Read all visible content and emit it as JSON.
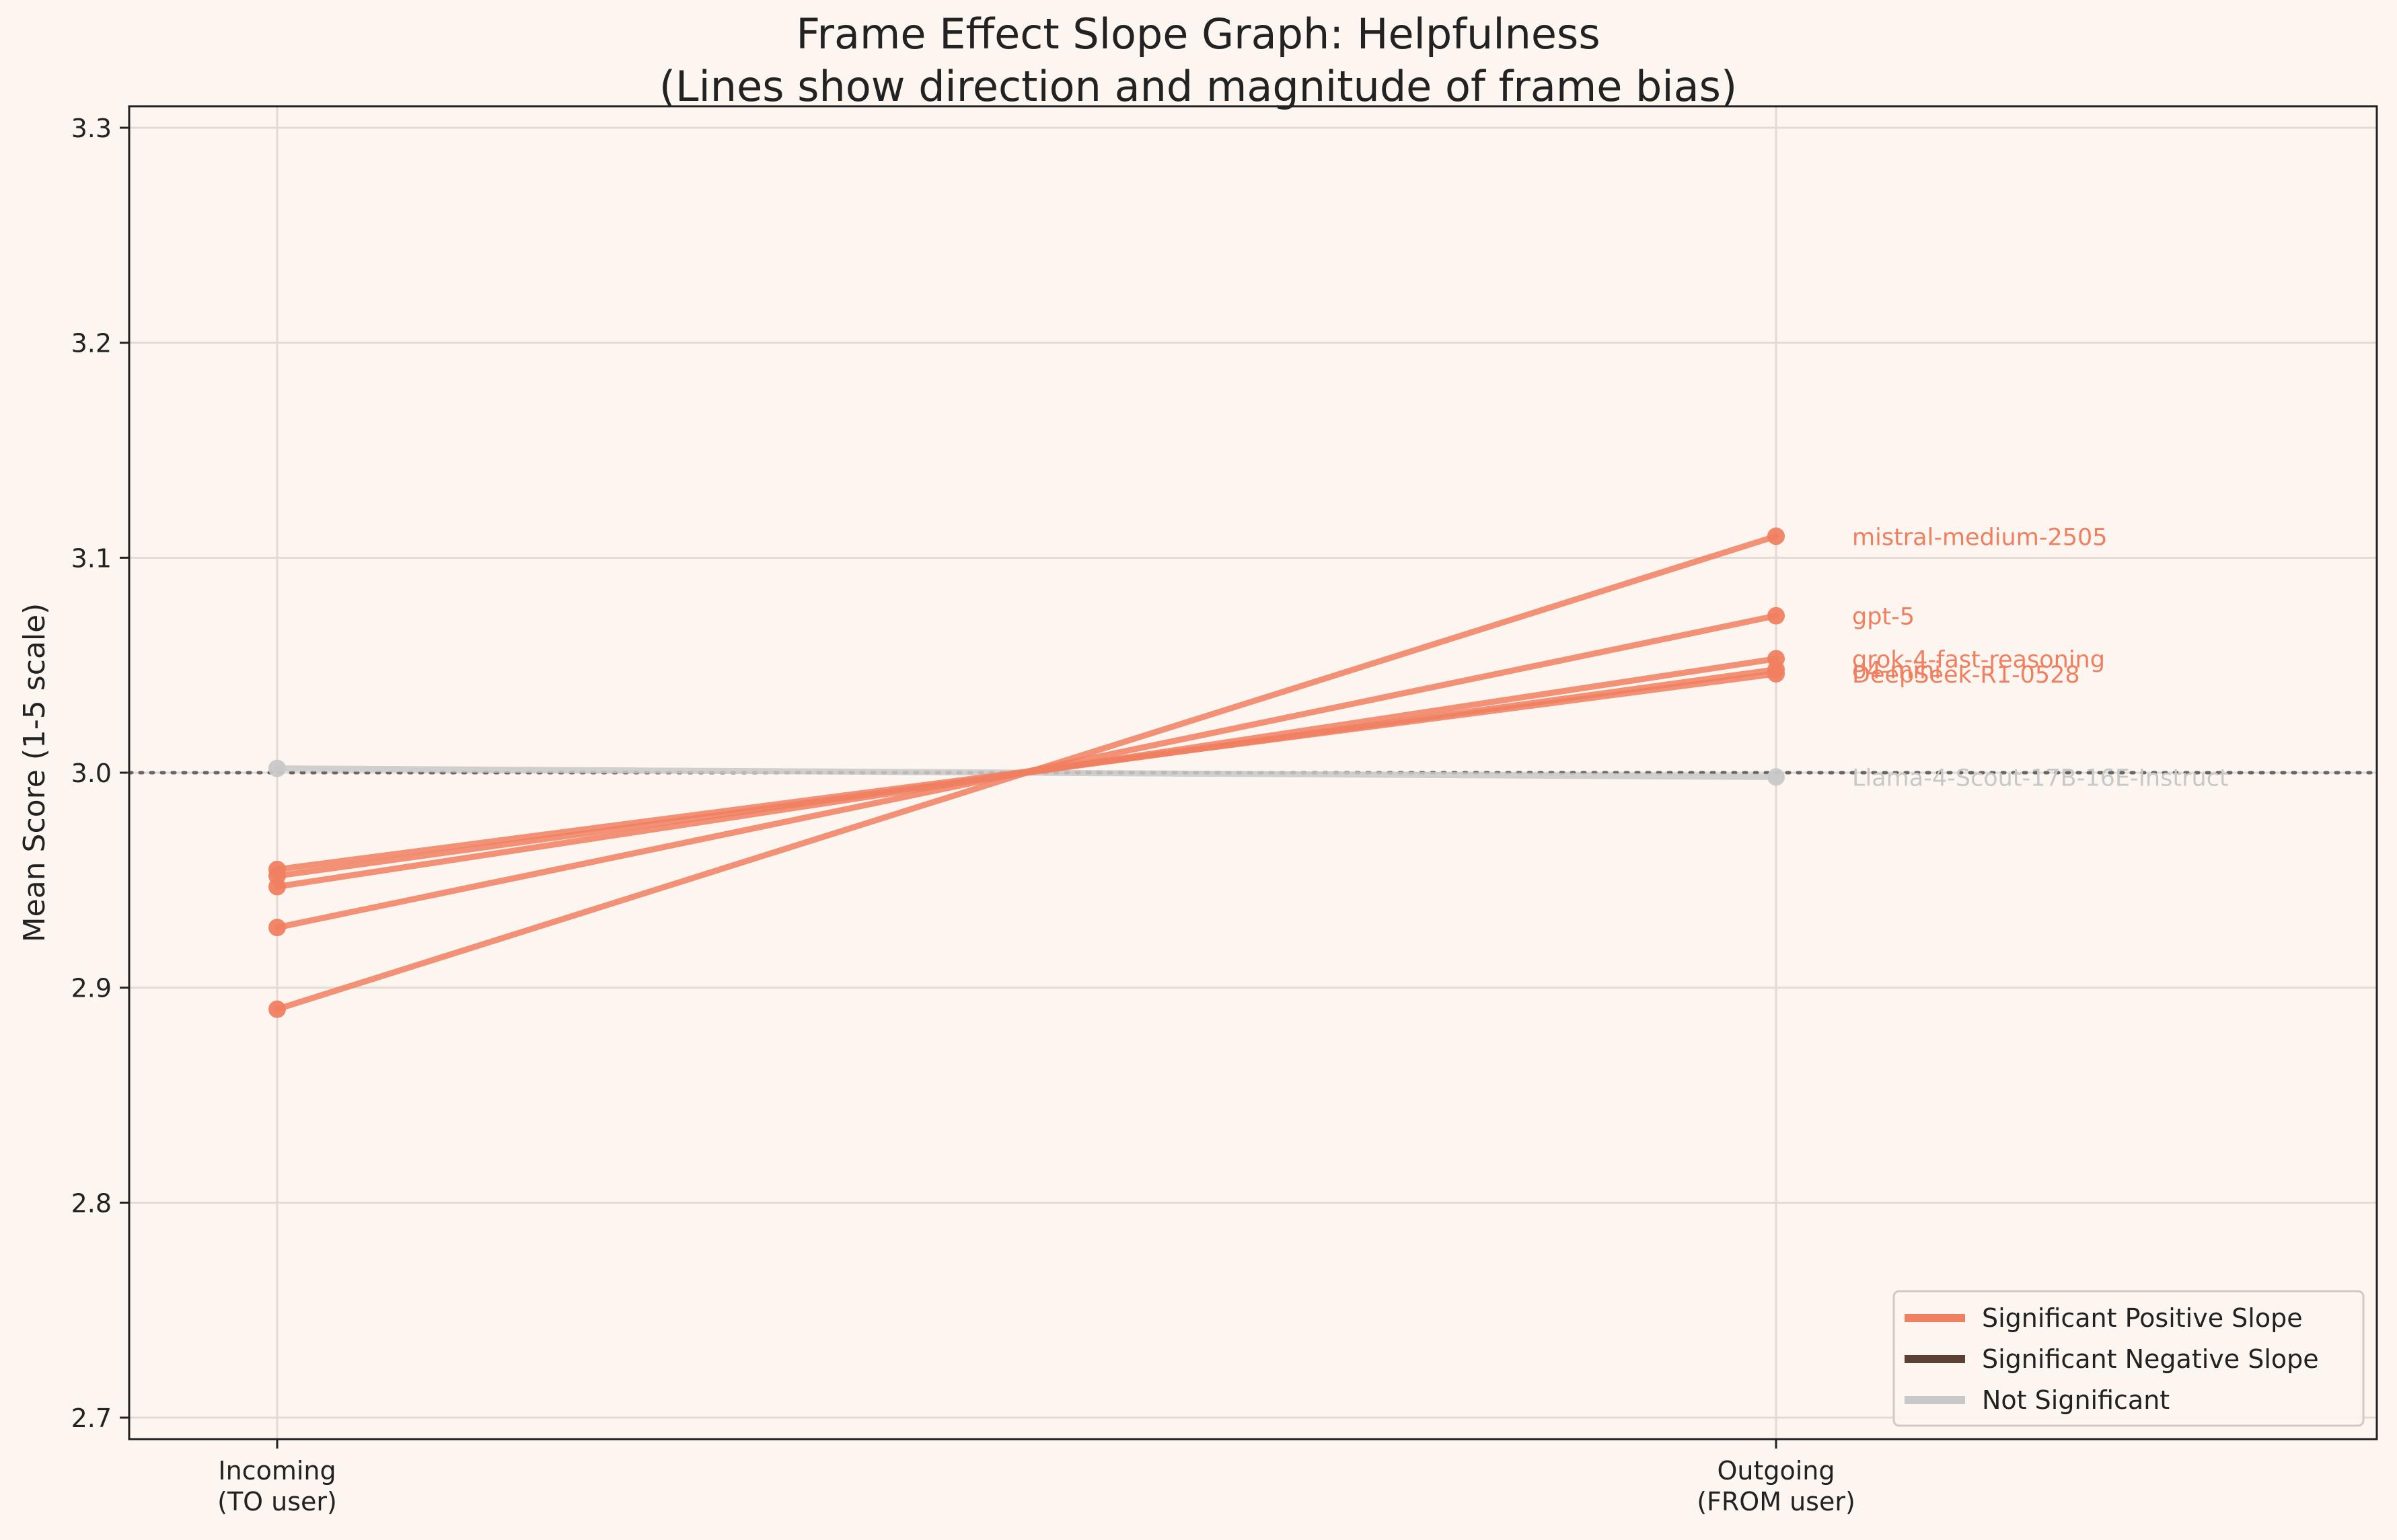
{
  "chart_data": {
    "type": "line",
    "title": "Frame Effect Slope Graph: Helpfulness",
    "subtitle": "(Lines show direction and magnitude of frame bias)",
    "xlabel": "",
    "ylabel": "Mean Score (1-5 scale)",
    "categories": [
      "Incoming\n(TO user)",
      "Outgoing\n(FROM user)"
    ],
    "ylim": [
      2.69,
      3.31
    ],
    "yticks": [
      2.7,
      2.8,
      2.9,
      3.0,
      3.1,
      3.2,
      3.3
    ],
    "reference_line": 3.0,
    "grid": true,
    "legend_position": "bottom-right",
    "colors": {
      "positive": "#f07f60",
      "negative": "#5c4033",
      "not_significant": "#c8c8c8",
      "reference": "#666666",
      "background": "#fdf6f0",
      "text": "#222222"
    },
    "legend": [
      {
        "label": "Significant Positive Slope",
        "kind": "positive"
      },
      {
        "label": "Significant Negative Slope",
        "kind": "negative"
      },
      {
        "label": "Not Significant",
        "kind": "not_significant"
      }
    ],
    "series": [
      {
        "name": "mistral-medium-2505",
        "values": [
          2.89,
          3.11
        ],
        "kind": "positive"
      },
      {
        "name": "gpt-5",
        "values": [
          2.928,
          3.073
        ],
        "kind": "positive"
      },
      {
        "name": "grok-4-fast-reasoning",
        "values": [
          2.947,
          3.053
        ],
        "kind": "positive"
      },
      {
        "name": "o4-mini",
        "values": [
          2.952,
          3.048
        ],
        "kind": "positive"
      },
      {
        "name": "DeepSeek-R1-0528",
        "values": [
          2.955,
          3.046
        ],
        "kind": "positive"
      },
      {
        "name": "Llama-4-Scout-17B-16E-Instruct",
        "values": [
          3.002,
          2.998
        ],
        "kind": "not_significant"
      }
    ]
  }
}
